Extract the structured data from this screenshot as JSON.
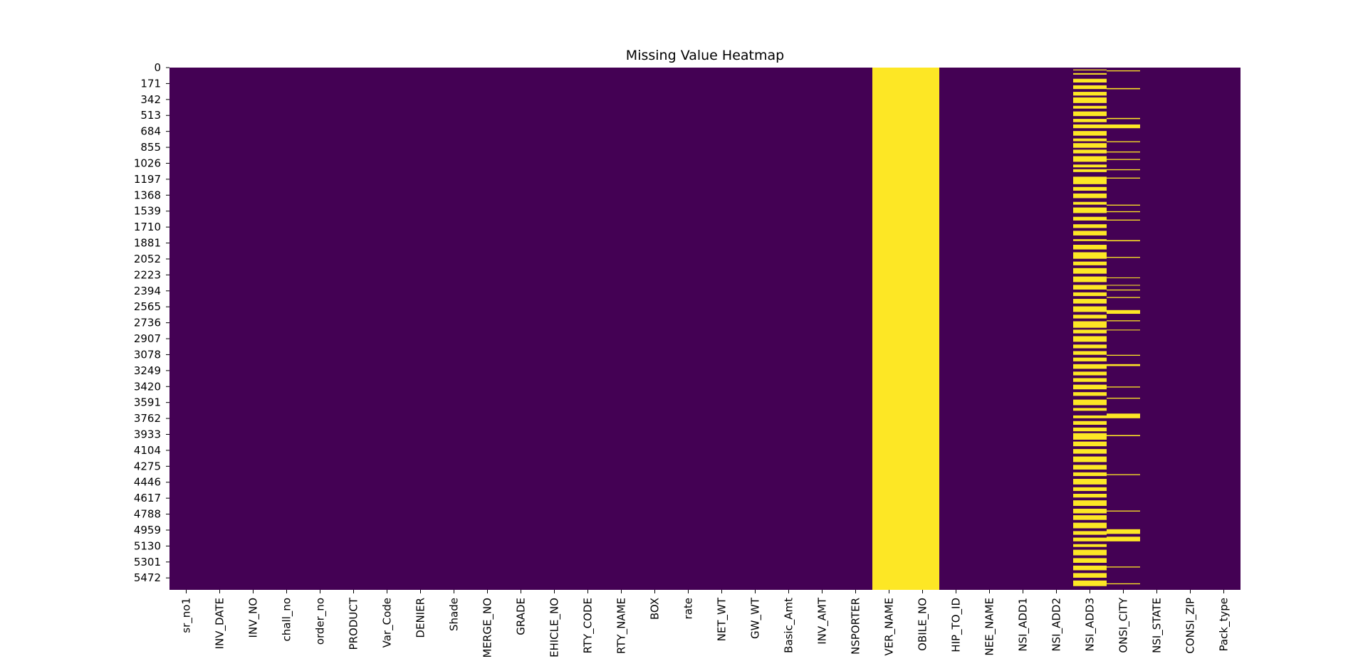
{
  "chart_data": {
    "type": "heatmap",
    "title": "Missing Value Heatmap",
    "xlabel": "",
    "ylabel": "",
    "row_count": 5600,
    "colors": {
      "present": "#440154",
      "missing": "#fde725"
    },
    "y_ticks": [
      0,
      171,
      342,
      513,
      684,
      855,
      1026,
      1197,
      1368,
      1539,
      1710,
      1881,
      2052,
      2223,
      2394,
      2565,
      2736,
      2907,
      3078,
      3249,
      3420,
      3591,
      3762,
      3933,
      4104,
      4275,
      4446,
      4617,
      4788,
      4959,
      5130,
      5301,
      5472
    ],
    "columns": [
      {
        "label": "sr_no1",
        "missing_rows": []
      },
      {
        "label": "INV_DATE",
        "missing_rows": []
      },
      {
        "label": "INV_NO",
        "missing_rows": []
      },
      {
        "label": "chall_no",
        "missing_rows": []
      },
      {
        "label": "order_no",
        "missing_rows": []
      },
      {
        "label": "PRODUCT",
        "missing_rows": []
      },
      {
        "label": "Var_Code",
        "missing_rows": []
      },
      {
        "label": "DENIER",
        "missing_rows": []
      },
      {
        "label": "Shade",
        "missing_rows": []
      },
      {
        "label": "MERGE_NO",
        "missing_rows": []
      },
      {
        "label": "GRADE",
        "missing_rows": []
      },
      {
        "label": "EHICLE_NO",
        "missing_rows": []
      },
      {
        "label": "RTY_CODE",
        "missing_rows": []
      },
      {
        "label": "RTY_NAME",
        "missing_rows": []
      },
      {
        "label": "BOX",
        "missing_rows": []
      },
      {
        "label": "rate",
        "missing_rows": []
      },
      {
        "label": "NET_WT",
        "missing_rows": []
      },
      {
        "label": "GW_WT",
        "missing_rows": []
      },
      {
        "label": "Basic_Amt",
        "missing_rows": []
      },
      {
        "label": "INV_AMT",
        "missing_rows": []
      },
      {
        "label": "NSPORTER",
        "missing_rows": []
      },
      {
        "label": "VER_NAME",
        "missing_rows": [
          [
            0,
            5600
          ]
        ]
      },
      {
        "label": "OBILE_NO",
        "missing_rows": [
          [
            0,
            5600
          ]
        ]
      },
      {
        "label": "HIP_TO_ID",
        "missing_rows": []
      },
      {
        "label": "NEE_NAME",
        "missing_rows": []
      },
      {
        "label": "NSI_ADD1",
        "missing_rows": []
      },
      {
        "label": "NSI_ADD2",
        "missing_rows": []
      },
      {
        "label": "NSI_ADD3",
        "missing_rows": [
          [
            20,
            30
          ],
          [
            60,
            75
          ],
          [
            120,
            160
          ],
          [
            190,
            230
          ],
          [
            260,
            300
          ],
          [
            320,
            380
          ],
          [
            410,
            440
          ],
          [
            470,
            520
          ],
          [
            550,
            585
          ],
          [
            610,
            650
          ],
          [
            680,
            730
          ],
          [
            760,
            790
          ],
          [
            810,
            860
          ],
          [
            880,
            920
          ],
          [
            950,
            1010
          ],
          [
            1040,
            1070
          ],
          [
            1090,
            1120
          ],
          [
            1170,
            1250
          ],
          [
            1280,
            1320
          ],
          [
            1350,
            1400
          ],
          [
            1440,
            1470
          ],
          [
            1500,
            1560
          ],
          [
            1600,
            1640
          ],
          [
            1680,
            1720
          ],
          [
            1750,
            1800
          ],
          [
            1840,
            1860
          ],
          [
            1900,
            1950
          ],
          [
            1980,
            2050
          ],
          [
            2080,
            2120
          ],
          [
            2150,
            2210
          ],
          [
            2240,
            2300
          ],
          [
            2330,
            2380
          ],
          [
            2410,
            2450
          ],
          [
            2480,
            2530
          ],
          [
            2560,
            2620
          ],
          [
            2650,
            2690
          ],
          [
            2720,
            2790
          ],
          [
            2810,
            2850
          ],
          [
            2880,
            2940
          ],
          [
            2970,
            3010
          ],
          [
            3040,
            3080
          ],
          [
            3110,
            3150
          ],
          [
            3180,
            3230
          ],
          [
            3260,
            3300
          ],
          [
            3330,
            3370
          ],
          [
            3400,
            3450
          ],
          [
            3480,
            3520
          ],
          [
            3560,
            3620
          ],
          [
            3650,
            3680
          ],
          [
            3730,
            3760
          ],
          [
            3790,
            3830
          ],
          [
            3860,
            3900
          ],
          [
            3920,
            3990
          ],
          [
            4010,
            4060
          ],
          [
            4090,
            4140
          ],
          [
            4170,
            4230
          ],
          [
            4260,
            4310
          ],
          [
            4340,
            4380
          ],
          [
            4410,
            4470
          ],
          [
            4500,
            4540
          ],
          [
            4570,
            4610
          ],
          [
            4640,
            4700
          ],
          [
            4730,
            4780
          ],
          [
            4800,
            4850
          ],
          [
            4880,
            4940
          ],
          [
            4970,
            5010
          ],
          [
            5040,
            5080
          ],
          [
            5110,
            5140
          ],
          [
            5170,
            5230
          ],
          [
            5260,
            5310
          ],
          [
            5340,
            5390
          ],
          [
            5420,
            5470
          ],
          [
            5500,
            5560
          ]
        ]
      },
      {
        "label": "ONSI_CITY",
        "missing_rows": [
          [
            30,
            40
          ],
          [
            220,
            232
          ],
          [
            540,
            552
          ],
          [
            610,
            650
          ],
          [
            790,
            800
          ],
          [
            900,
            910
          ],
          [
            980,
            990
          ],
          [
            1090,
            1100
          ],
          [
            1180,
            1190
          ],
          [
            1470,
            1480
          ],
          [
            1540,
            1550
          ],
          [
            1630,
            1640
          ],
          [
            1850,
            1862
          ],
          [
            2030,
            2040
          ],
          [
            2250,
            2258
          ],
          [
            2330,
            2338
          ],
          [
            2380,
            2390
          ],
          [
            2460,
            2470
          ],
          [
            2600,
            2640
          ],
          [
            2710,
            2720
          ],
          [
            2810,
            2818
          ],
          [
            3080,
            3090
          ],
          [
            3180,
            3200
          ],
          [
            3420,
            3430
          ],
          [
            3540,
            3550
          ],
          [
            3710,
            3760
          ],
          [
            3940,
            3952
          ],
          [
            4360,
            4370
          ],
          [
            4750,
            4760
          ],
          [
            4950,
            5000
          ],
          [
            5030,
            5080
          ],
          [
            5350,
            5360
          ],
          [
            5530,
            5540
          ]
        ]
      },
      {
        "label": "NSI_STATE",
        "missing_rows": []
      },
      {
        "label": "CONSI_ZIP",
        "missing_rows": []
      },
      {
        "label": "Pack_type",
        "missing_rows": []
      }
    ]
  }
}
